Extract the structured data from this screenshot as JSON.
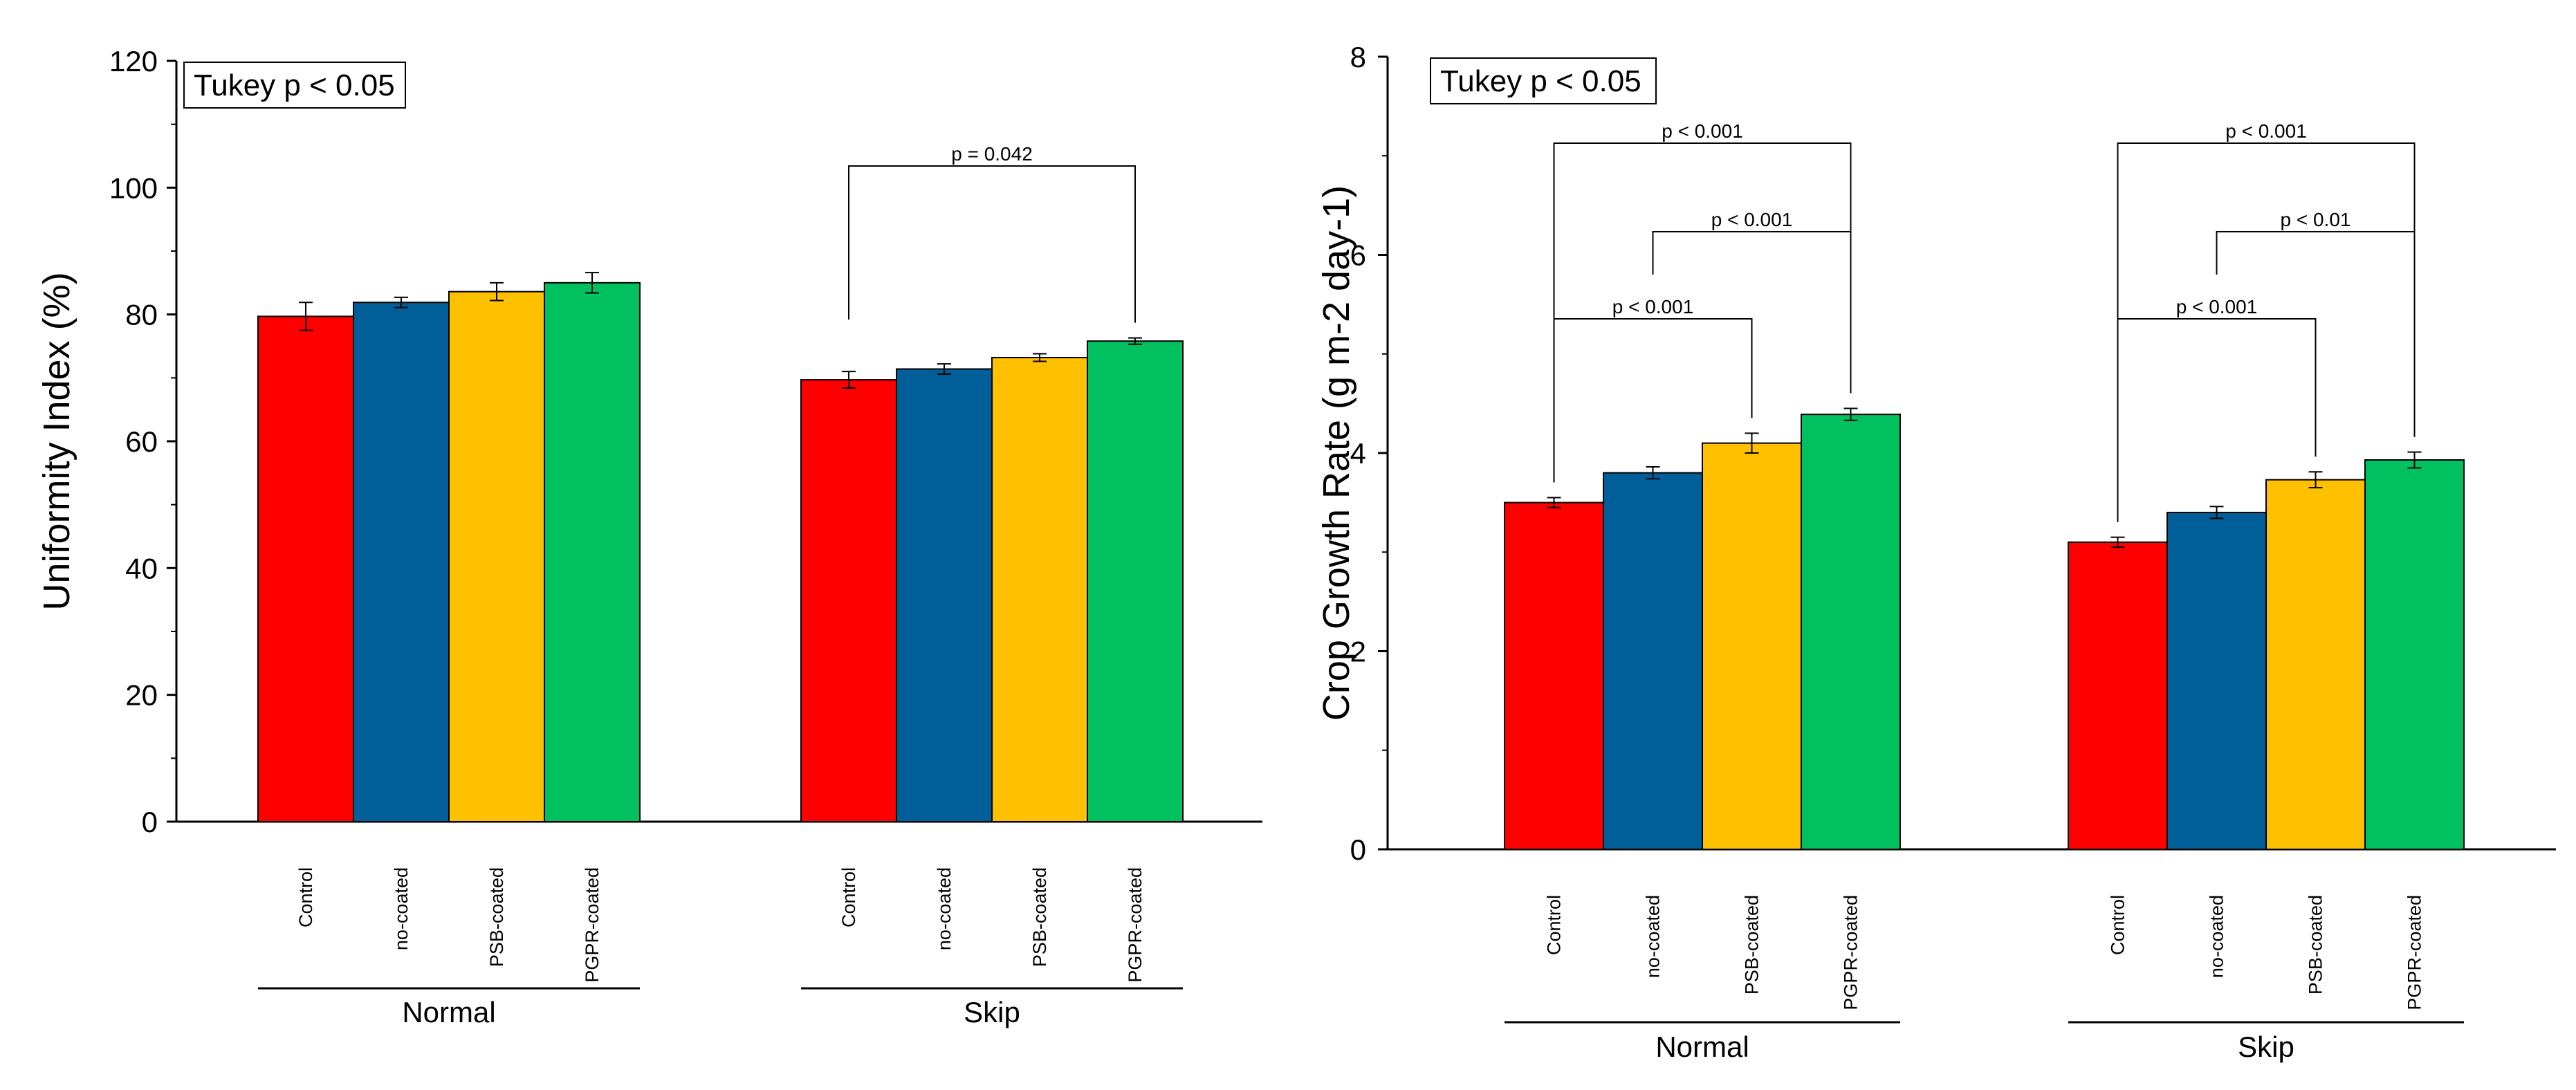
{
  "chart_data": [
    {
      "type": "bar",
      "title": "",
      "ylabel": "Uniformity Index (%)",
      "xlabel": "",
      "ylim": [
        0,
        120
      ],
      "yticks": [
        "0",
        "20",
        "40",
        "60",
        "80",
        "100",
        "120"
      ],
      "annotation": "Tukey p < 0.05",
      "groups": [
        "Normal",
        "Skip"
      ],
      "categories": [
        "Control",
        "no-coated",
        "PSB-coated",
        "PGPR-coated"
      ],
      "colors": [
        "#ff0000",
        "#005f99",
        "#ffc000",
        "#00c060"
      ],
      "values": [
        [
          79.7,
          81.9,
          83.6,
          85.0
        ],
        [
          69.7,
          71.4,
          73.2,
          75.8
        ]
      ],
      "errors": [
        [
          2.2,
          0.8,
          1.4,
          1.6
        ],
        [
          1.3,
          0.8,
          0.6,
          0.5
        ]
      ],
      "comparisons": [
        {
          "group": 1,
          "from": 0,
          "to": 3,
          "label": "p = 0.042"
        }
      ]
    },
    {
      "type": "bar",
      "title": "",
      "ylabel": "Crop Growth Rate (g m-2 day-1)",
      "xlabel": "",
      "ylim": [
        0,
        8
      ],
      "yticks": [
        "0",
        "2",
        "4",
        "6",
        "8"
      ],
      "annotation": "Tukey p < 0.05",
      "groups": [
        "Normal",
        "Skip"
      ],
      "categories": [
        "Control",
        "no-coated",
        "PSB-coated",
        "PGPR-coated"
      ],
      "colors": [
        "#ff0000",
        "#005f99",
        "#ffc000",
        "#00c060"
      ],
      "values": [
        [
          3.5,
          3.8,
          4.1,
          4.39
        ],
        [
          3.1,
          3.4,
          3.73,
          3.93
        ]
      ],
      "errors": [
        [
          0.05,
          0.06,
          0.1,
          0.06
        ],
        [
          0.05,
          0.06,
          0.08,
          0.08
        ]
      ],
      "comparisons": [
        {
          "group": 0,
          "from": 0,
          "to": 3,
          "label": "p < 0.001"
        },
        {
          "group": 0,
          "from": 1,
          "to": 3,
          "label": "p < 0.001"
        },
        {
          "group": 0,
          "from": 0,
          "to": 2,
          "label": "p < 0.001"
        },
        {
          "group": 1,
          "from": 0,
          "to": 3,
          "label": "p < 0.001"
        },
        {
          "group": 1,
          "from": 1,
          "to": 3,
          "label": "p < 0.01"
        },
        {
          "group": 1,
          "from": 0,
          "to": 2,
          "label": "p < 0.001"
        }
      ]
    }
  ]
}
